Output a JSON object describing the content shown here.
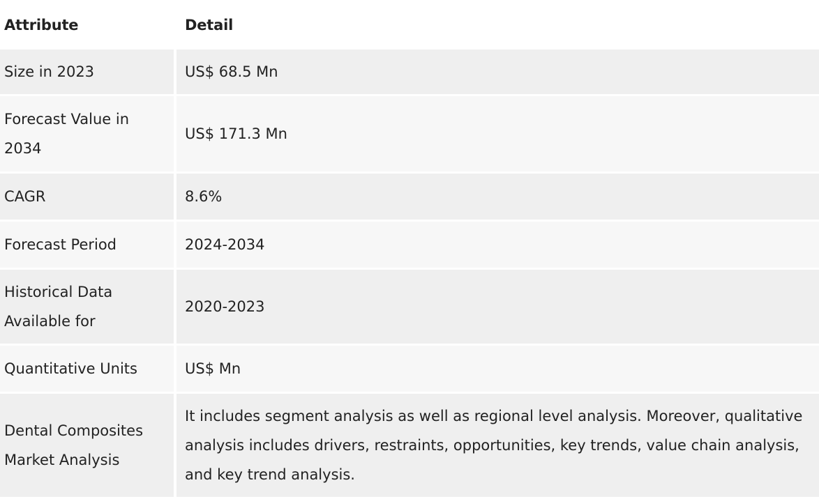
{
  "table": {
    "headers": {
      "attribute": "Attribute",
      "detail": "Detail"
    },
    "rows": [
      {
        "attribute": "Size in 2023",
        "detail": "US$ 68.5 Mn"
      },
      {
        "attribute": "Forecast Value in 2034",
        "detail": "US$ 171.3 Mn"
      },
      {
        "attribute": "CAGR",
        "detail": "8.6%"
      },
      {
        "attribute": "Forecast Period",
        "detail": "2024-2034"
      },
      {
        "attribute": "Historical Data Available for",
        "detail": "2020-2023"
      },
      {
        "attribute": "Quantitative Units",
        "detail": "US$ Mn"
      },
      {
        "attribute": "Dental Composites Market Analysis",
        "detail": "It includes segment analysis as well as regional level analysis. Moreover, qualitative analysis includes drivers, restraints, opportunities, key trends, value chain analysis, and key trend analysis."
      }
    ]
  },
  "colors": {
    "row_odd": "#efefef",
    "row_even": "#f7f7f7",
    "text": "#222222"
  }
}
